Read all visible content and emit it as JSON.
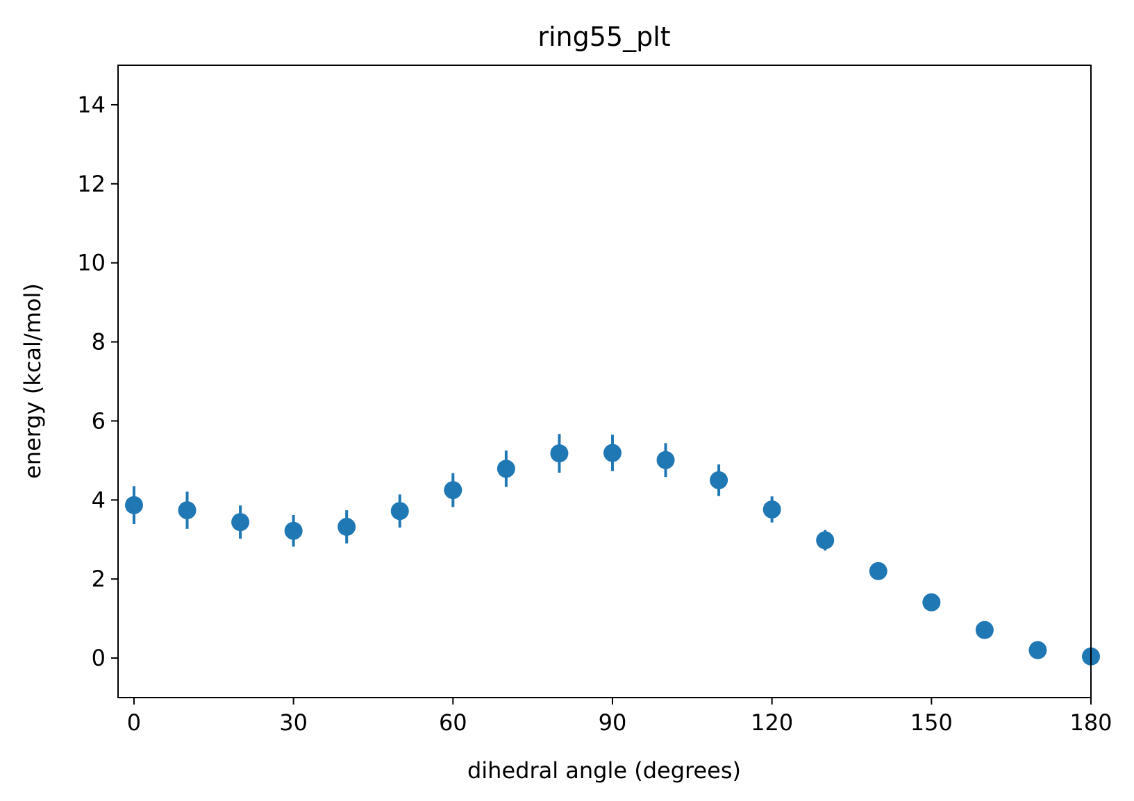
{
  "chart_data": {
    "type": "scatter",
    "title": "ring55_plt",
    "xlabel": "dihedral angle (degrees)",
    "ylabel": "energy (kcal/mol)",
    "xlim": [
      -3,
      180
    ],
    "ylim": [
      -1,
      15
    ],
    "xticks": [
      0,
      30,
      60,
      90,
      120,
      150,
      180
    ],
    "yticks": [
      0,
      2,
      4,
      6,
      8,
      10,
      12,
      14
    ],
    "grid": false,
    "marker_color": "#1f77b4",
    "points": [
      {
        "x": 0,
        "y": 3.87,
        "err": 0.48
      },
      {
        "x": 10,
        "y": 3.74,
        "err": 0.47
      },
      {
        "x": 20,
        "y": 3.44,
        "err": 0.42
      },
      {
        "x": 30,
        "y": 3.22,
        "err": 0.4
      },
      {
        "x": 40,
        "y": 3.32,
        "err": 0.42
      },
      {
        "x": 50,
        "y": 3.72,
        "err": 0.42
      },
      {
        "x": 60,
        "y": 4.25,
        "err": 0.43
      },
      {
        "x": 70,
        "y": 4.79,
        "err": 0.46
      },
      {
        "x": 80,
        "y": 5.18,
        "err": 0.49
      },
      {
        "x": 90,
        "y": 5.19,
        "err": 0.46
      },
      {
        "x": 100,
        "y": 5.01,
        "err": 0.43
      },
      {
        "x": 110,
        "y": 4.5,
        "err": 0.4
      },
      {
        "x": 120,
        "y": 3.76,
        "err": 0.33
      },
      {
        "x": 130,
        "y": 2.98,
        "err": 0.26
      },
      {
        "x": 140,
        "y": 2.2,
        "err": 0.1
      },
      {
        "x": 150,
        "y": 1.41,
        "err": 0.05
      },
      {
        "x": 160,
        "y": 0.71,
        "err": 0.03
      },
      {
        "x": 170,
        "y": 0.2,
        "err": 0.02
      },
      {
        "x": 180,
        "y": 0.04,
        "err": 0.01
      }
    ]
  }
}
